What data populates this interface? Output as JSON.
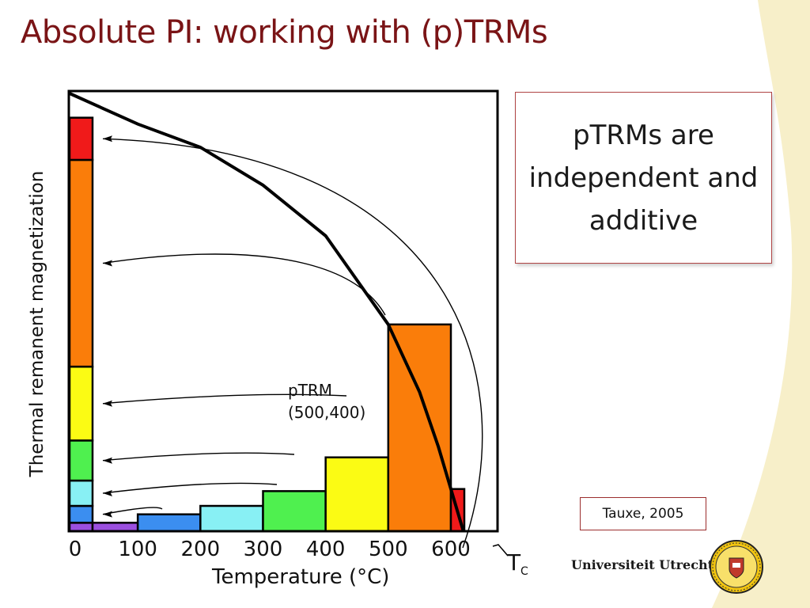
{
  "slide": {
    "title": "Absolute PI: working with (p)TRMs"
  },
  "note": {
    "text": "pTRMs are independent and additive"
  },
  "citation": "Tauxe, 2005",
  "footer": {
    "university_name": "Universiteit Utrecht"
  },
  "colors": {
    "title": "#7a1416",
    "background_wave": "#f7efc9",
    "note_border": "#b04444"
  },
  "chart_data": {
    "type": "bar",
    "xlabel": "Temperature (°C)",
    "ylabel": "Thermal remanent magnetization",
    "xlim": [
      0,
      640
    ],
    "ylim": [
      0,
      1
    ],
    "x_ticks": [
      "0",
      "100",
      "200",
      "300",
      "400",
      "500",
      "600"
    ],
    "curie_label": "T",
    "curie_subscript": "C",
    "curie_temperature": 620,
    "curve": {
      "x": [
        0,
        100,
        200,
        300,
        400,
        500,
        550,
        580,
        600,
        620
      ],
      "y": [
        1.0,
        0.965,
        0.91,
        0.82,
        0.7,
        0.49,
        0.33,
        0.2,
        0.1,
        0.0
      ]
    },
    "ptrm_blocks": [
      {
        "t_low": 0,
        "t_high": 100,
        "value": 0.02,
        "color": "#9b4fe0"
      },
      {
        "t_low": 100,
        "t_high": 200,
        "value": 0.04,
        "color": "#3b8ef0"
      },
      {
        "t_low": 200,
        "t_high": 300,
        "value": 0.06,
        "color": "#88f0f4"
      },
      {
        "t_low": 300,
        "t_high": 400,
        "value": 0.095,
        "color": "#4ff04f"
      },
      {
        "t_low": 400,
        "t_high": 500,
        "value": 0.175,
        "color": "#fbfb14"
      },
      {
        "t_low": 500,
        "t_high": 600,
        "value": 0.49,
        "color": "#fa7d0a"
      },
      {
        "t_low": 600,
        "t_high": 620,
        "value": 0.1,
        "color": "#f01a1a"
      }
    ],
    "annotation": {
      "line1": "pTRM",
      "line2": "(500,400)"
    }
  }
}
